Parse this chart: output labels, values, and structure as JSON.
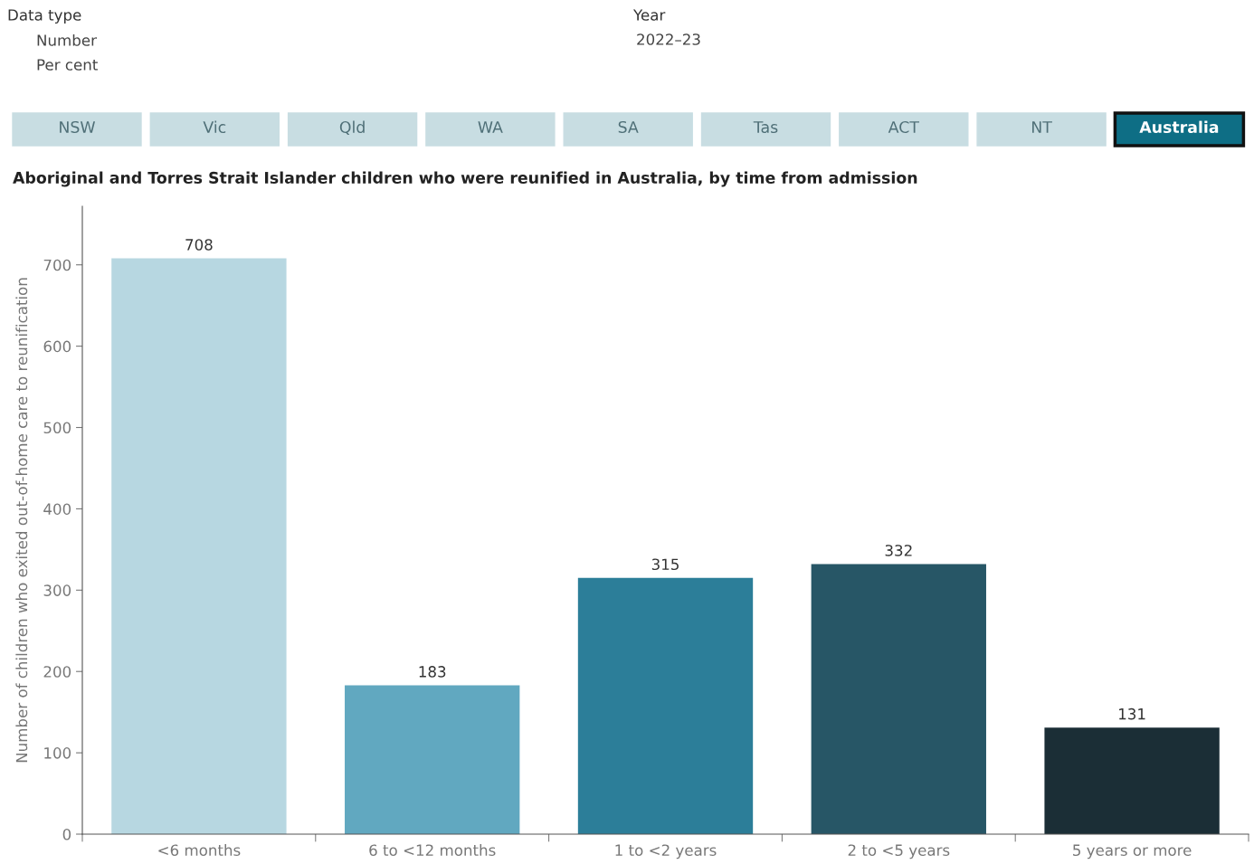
{
  "chart_data": [
    {
      "type": "other",
      "annotations": [
        "Data type",
        "Number",
        "Per cent",
        "Year",
        "2022–23",
        "NSW",
        "Vic",
        "Qld",
        "WA",
        "SA",
        "Tas",
        "ACT",
        "NT",
        "Australia"
      ]
    },
    {
      "type": "bar",
      "title": "Aboriginal and Torres Strait Islander children who were reunified in Australia, by time from admission",
      "ylabel": "Number of children who exited out-of-home care to reunification",
      "categories": [
        "<6 months",
        "6 to <12 months",
        "1 to <2 years",
        "2 to <5 years",
        "5 years or more"
      ],
      "values": [
        708,
        183,
        315,
        332,
        131
      ],
      "colors": [
        "#b7d7e1",
        "#61a8c0",
        "#2c7e99",
        "#275666",
        "#1b2e36"
      ],
      "ylim": [
        0,
        772
      ],
      "yticks": [
        0,
        100,
        200,
        300,
        400,
        500,
        600,
        700
      ],
      "data_labels": true,
      "grid": false,
      "legend": false
    }
  ]
}
